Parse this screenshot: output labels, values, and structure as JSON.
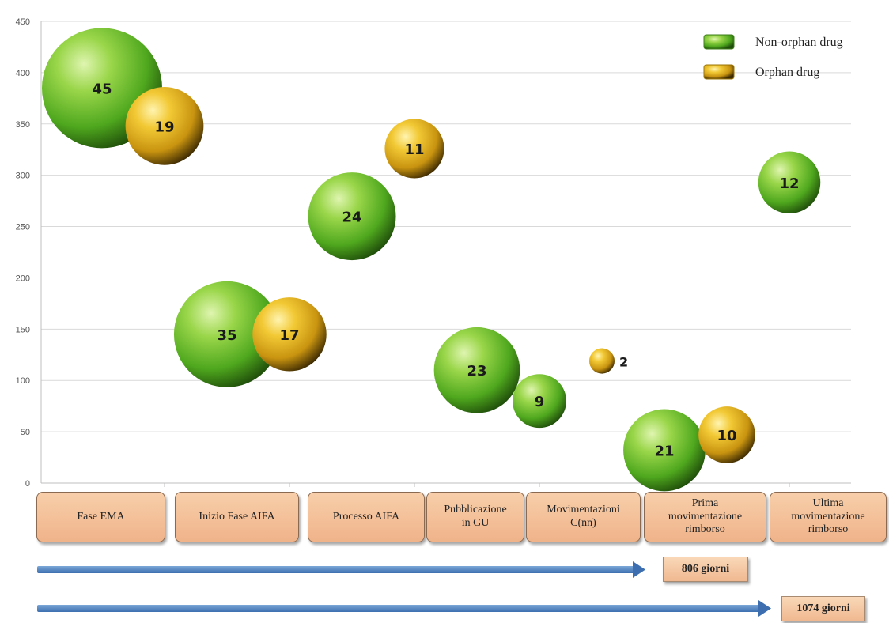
{
  "chart_data": {
    "type": "bubble",
    "ylim": [
      0,
      450
    ],
    "yticks": [
      0,
      50,
      100,
      150,
      200,
      250,
      300,
      350,
      400,
      450
    ],
    "categories": [
      "Fase EMA",
      "Inizio  Fase AIFA",
      "Processo AIFA",
      "Pubblicazione\nin GU",
      "Movimentazioni\nC(nn)",
      "Prima\nmovimentazione\nrimborso",
      "Ultima\nmovimentazione\nrimborso"
    ],
    "series": [
      {
        "name": "Non-orphan drug",
        "color": "#5cb82e",
        "points": [
          {
            "x": 0.5,
            "y": 385,
            "label": "45"
          },
          {
            "x": 1.5,
            "y": 145,
            "label": "35"
          },
          {
            "x": 2.5,
            "y": 260,
            "label": "24"
          },
          {
            "x": 3.5,
            "y": 110,
            "label": "23"
          },
          {
            "x": 4.0,
            "y": 80,
            "label": "9"
          },
          {
            "x": 5.0,
            "y": 32,
            "label": "21"
          },
          {
            "x": 6.0,
            "y": 293,
            "label": "12"
          }
        ]
      },
      {
        "name": "Orphan drug",
        "color": "#e8b518",
        "points": [
          {
            "x": 1.0,
            "y": 348,
            "label": "19"
          },
          {
            "x": 2.0,
            "y": 145,
            "label": "17"
          },
          {
            "x": 3.0,
            "y": 326,
            "label": "11"
          },
          {
            "x": 4.5,
            "y": 119,
            "label": "2"
          },
          {
            "x": 5.5,
            "y": 47,
            "label": "10"
          }
        ]
      }
    ],
    "legend_position": "top-right",
    "grid": true,
    "timelines": [
      {
        "label": "806 giorni"
      },
      {
        "label": "1074 giorni"
      }
    ]
  }
}
